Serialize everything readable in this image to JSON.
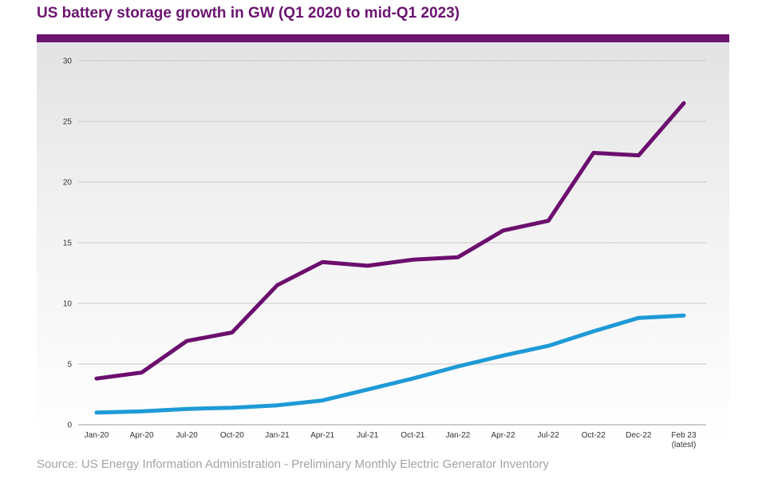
{
  "title": "US battery storage growth in GW (Q1 2020 to mid-Q1 2023)",
  "source": "Source: US Energy Information Administration - Preliminary Monthly Electric Generator Inventory",
  "colors": {
    "accent": "#6b1470",
    "series_purple": "#6b0f6e",
    "series_blue": "#1e9ad6",
    "grid": "#c8c8c8"
  },
  "chart_data": {
    "type": "line",
    "title": "US battery storage growth in GW (Q1 2020 to mid-Q1 2023)",
    "xlabel": "",
    "ylabel": "",
    "ylim": [
      0,
      30
    ],
    "yticks": [
      0,
      5,
      10,
      15,
      20,
      25,
      30
    ],
    "grid": true,
    "legend": "none",
    "categories": [
      "Jan-20",
      "Apr-20",
      "Jul-20",
      "Oct-20",
      "Jan-21",
      "Apr-21",
      "Jul-21",
      "Oct-21",
      "Jan-22",
      "Apr-22",
      "Jul-22",
      "Oct-22",
      "Dec-22",
      "Feb 23 (latest)"
    ],
    "category_lines": [
      [
        "Jan-20"
      ],
      [
        "Apr-20"
      ],
      [
        "Jul-20"
      ],
      [
        "Oct-20"
      ],
      [
        "Jan-21"
      ],
      [
        "Apr-21"
      ],
      [
        "Jul-21"
      ],
      [
        "Oct-21"
      ],
      [
        "Jan-22"
      ],
      [
        "Apr-22"
      ],
      [
        "Jul-22"
      ],
      [
        "Oct-22"
      ],
      [
        "Dec-22"
      ],
      [
        "Feb 23",
        "(latest)"
      ]
    ],
    "series": [
      {
        "color": "#6b0f6e",
        "values": [
          3.8,
          4.3,
          6.9,
          7.6,
          11.5,
          13.4,
          13.1,
          13.6,
          13.8,
          16.0,
          16.8,
          22.4,
          22.2,
          26.5
        ]
      },
      {
        "color": "#1e9ad6",
        "values": [
          1.0,
          1.1,
          1.3,
          1.4,
          1.6,
          2.0,
          2.9,
          3.8,
          4.8,
          5.7,
          6.5,
          7.7,
          8.8,
          9.0
        ]
      }
    ]
  }
}
